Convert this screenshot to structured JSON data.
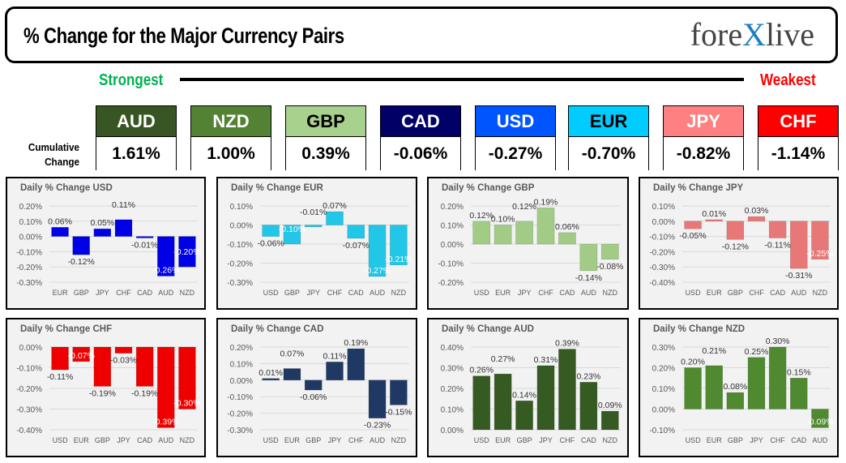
{
  "header": {
    "title": "% Change for the Major Currency Pairs",
    "logo_text": "forexlive"
  },
  "scale": {
    "strongest_label": "Strongest",
    "weakest_label": "Weakest",
    "cumulative_label_line1": "Cumulative",
    "cumulative_label_line2": "Change"
  },
  "cards": [
    {
      "currency": "AUD",
      "value": "1.61%",
      "bg": "#375623",
      "fg": "#ffffff"
    },
    {
      "currency": "NZD",
      "value": "1.00%",
      "bg": "#548235",
      "fg": "#ffffff"
    },
    {
      "currency": "GBP",
      "value": "0.39%",
      "bg": "#a9d18e",
      "fg": "#000000"
    },
    {
      "currency": "CAD",
      "value": "-0.06%",
      "bg": "#000066",
      "fg": "#ffffff"
    },
    {
      "currency": "USD",
      "value": "-0.27%",
      "bg": "#0055ff",
      "fg": "#ffffff"
    },
    {
      "currency": "EUR",
      "value": "-0.70%",
      "bg": "#00ccff",
      "fg": "#000000"
    },
    {
      "currency": "JPY",
      "value": "-0.82%",
      "bg": "#ff8080",
      "fg": "#ffffff"
    },
    {
      "currency": "CHF",
      "value": "-1.14%",
      "bg": "#ff0000",
      "fg": "#ffffff"
    }
  ],
  "chart_data": [
    {
      "type": "bar",
      "title": "Daily % Change USD",
      "categories": [
        "EUR",
        "GBP",
        "JPY",
        "CHF",
        "CAD",
        "AUD",
        "NZD"
      ],
      "values": [
        0.06,
        -0.12,
        0.05,
        0.11,
        -0.01,
        -0.26,
        -0.2
      ],
      "labels": [
        "0.06%",
        "-0.12%",
        "0.05%",
        "0.11%",
        "-0.01%",
        "-0.26%",
        "-0.20%"
      ],
      "ylim": [
        -0.3,
        0.2
      ],
      "yticks": [
        "0.20%",
        "0.10%",
        "0.00%",
        "-0.10%",
        "-0.20%",
        "-0.30%"
      ],
      "color": "#0000e6",
      "grid": true
    },
    {
      "type": "bar",
      "title": "Daily % Change EUR",
      "categories": [
        "USD",
        "GBP",
        "JPY",
        "CHF",
        "CAD",
        "AUD",
        "NZD"
      ],
      "values": [
        -0.06,
        -0.1,
        -0.01,
        0.07,
        -0.07,
        -0.27,
        -0.21
      ],
      "labels": [
        "-0.06%",
        "-0.10%",
        "-0.01%",
        "0.07%",
        "-0.07%",
        "-0.27%",
        "-0.21%"
      ],
      "ylim": [
        -0.3,
        0.1
      ],
      "yticks": [
        "0.10%",
        "0.00%",
        "-0.10%",
        "-0.20%",
        "-0.30%"
      ],
      "color": "#22c6e6",
      "grid": true
    },
    {
      "type": "bar",
      "title": "Daily % Change GBP",
      "categories": [
        "USD",
        "EUR",
        "JPY",
        "CHF",
        "CAD",
        "AUD",
        "NZD"
      ],
      "values": [
        0.12,
        0.1,
        0.12,
        0.19,
        0.06,
        -0.14,
        -0.08
      ],
      "labels": [
        "0.12%",
        "0.10%",
        "0.12%",
        "0.19%",
        "0.06%",
        "-0.14%",
        "-0.08%"
      ],
      "ylim": [
        -0.2,
        0.2
      ],
      "yticks": [
        "0.20%",
        "0.10%",
        "0.00%",
        "-0.10%",
        "-0.20%"
      ],
      "color": "#a2cc85",
      "grid": true
    },
    {
      "type": "bar",
      "title": "Daily % Change JPY",
      "categories": [
        "USD",
        "EUR",
        "GBP",
        "CHF",
        "CAD",
        "AUD",
        "NZD"
      ],
      "values": [
        -0.05,
        0.01,
        -0.12,
        0.03,
        -0.11,
        -0.31,
        -0.25
      ],
      "labels": [
        "-0.05%",
        "0.01%",
        "-0.12%",
        "0.03%",
        "-0.11%",
        "-0.31%",
        "-0.25%"
      ],
      "ylim": [
        -0.4,
        0.1
      ],
      "yticks": [
        "0.10%",
        "0.00%",
        "-0.10%",
        "-0.20%",
        "-0.30%",
        "-0.40%"
      ],
      "color": "#e87878",
      "grid": true
    },
    {
      "type": "bar",
      "title": "Daily % Change CHF",
      "categories": [
        "USD",
        "EUR",
        "GBP",
        "JPY",
        "CAD",
        "AUD",
        "NZD"
      ],
      "values": [
        -0.11,
        -0.07,
        -0.19,
        -0.03,
        -0.19,
        -0.39,
        -0.3
      ],
      "labels": [
        "-0.11%",
        "-0.07%",
        "-0.19%",
        "-0.03%",
        "-0.19%",
        "-0.39%",
        "-0.30%"
      ],
      "ylim": [
        -0.4,
        0.0
      ],
      "yticks": [
        "0.00%",
        "-0.10%",
        "-0.20%",
        "-0.30%",
        "-0.40%"
      ],
      "color": "#ee0000",
      "grid": true
    },
    {
      "type": "bar",
      "title": "Daily % Change CAD",
      "categories": [
        "USD",
        "EUR",
        "GBP",
        "JPY",
        "CHF",
        "AUD",
        "NZD"
      ],
      "values": [
        0.01,
        0.07,
        -0.06,
        0.11,
        0.19,
        -0.23,
        -0.15
      ],
      "labels": [
        "0.01%",
        "0.07%",
        "-0.06%",
        "0.11%",
        "0.19%",
        "-0.23%",
        "-0.15%"
      ],
      "ylim": [
        -0.3,
        0.2
      ],
      "yticks": [
        "0.20%",
        "0.10%",
        "0.00%",
        "-0.10%",
        "-0.20%",
        "-0.30%"
      ],
      "color": "#1f3864",
      "grid": true
    },
    {
      "type": "bar",
      "title": "Daily % Change AUD",
      "categories": [
        "USD",
        "EUR",
        "GBP",
        "JPY",
        "CHF",
        "CAD",
        "NZD"
      ],
      "values": [
        0.26,
        0.27,
        0.14,
        0.31,
        0.39,
        0.23,
        0.09
      ],
      "labels": [
        "0.26%",
        "0.27%",
        "0.14%",
        "0.31%",
        "0.39%",
        "0.23%",
        "0.09%"
      ],
      "ylim": [
        0.0,
        0.4
      ],
      "yticks": [
        "0.40%",
        "0.30%",
        "0.20%",
        "0.10%",
        "0.00%"
      ],
      "color": "#355a22",
      "grid": true
    },
    {
      "type": "bar",
      "title": "Daily % Change NZD",
      "categories": [
        "USD",
        "EUR",
        "GBP",
        "JPY",
        "CHF",
        "CAD",
        "AUD"
      ],
      "values": [
        0.2,
        0.21,
        0.08,
        0.25,
        0.3,
        0.15,
        -0.09
      ],
      "labels": [
        "0.20%",
        "0.21%",
        "0.08%",
        "0.25%",
        "0.30%",
        "0.15%",
        "-0.09%"
      ],
      "ylim": [
        -0.1,
        0.3
      ],
      "yticks": [
        "0.30%",
        "0.20%",
        "0.10%",
        "0.00%",
        "-0.10%"
      ],
      "color": "#4f8a30",
      "grid": true
    }
  ]
}
